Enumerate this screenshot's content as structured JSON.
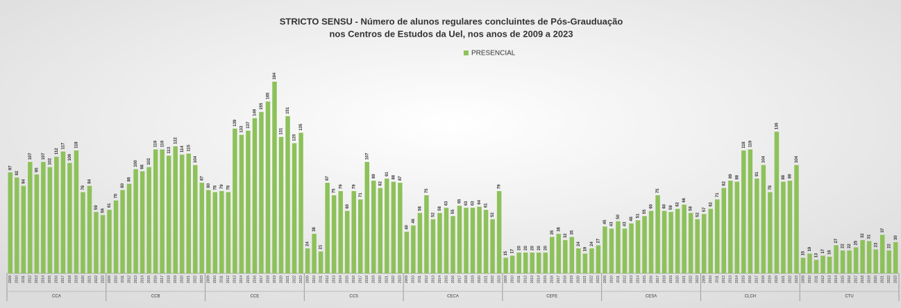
{
  "chart_data": {
    "type": "bar",
    "title": "STRICTO SENSU - Número de alunos regulares concluintes de Pós-Grauduação",
    "subtitle": "nos Centros de Estudos da Uel, nos anos de 2009 a 2023",
    "legend": "PRESENCIAL",
    "color": "#8dc15a",
    "ylim": [
      0,
      190
    ],
    "categories": [
      "2009",
      "2010",
      "2011",
      "2012",
      "2013",
      "2014",
      "2015",
      "2016",
      "2017",
      "2018",
      "2019",
      "2020",
      "2021",
      "2022",
      "2023"
    ],
    "groups": [
      {
        "name": "CCA",
        "values": [
          97,
          92,
          84,
          107,
          95,
          107,
          102,
          112,
          117,
          106,
          118,
          78,
          84,
          59,
          56
        ]
      },
      {
        "name": "CCB",
        "values": [
          61,
          70,
          80,
          86,
          100,
          98,
          102,
          119,
          119,
          113,
          122,
          114,
          115,
          104,
          87
        ]
      },
      {
        "name": "CCE",
        "values": [
          80,
          78,
          79,
          78,
          139,
          133,
          137,
          149,
          155,
          165,
          184,
          131,
          151,
          125,
          135
        ]
      },
      {
        "name": "CCS",
        "values": [
          24,
          38,
          21,
          87,
          75,
          79,
          60,
          79,
          71,
          107,
          89,
          82,
          91,
          88,
          87
        ]
      },
      {
        "name": "CECA",
        "values": [
          40,
          46,
          58,
          75,
          52,
          58,
          63,
          55,
          65,
          63,
          63,
          64,
          61,
          52,
          79
        ]
      },
      {
        "name": "CEFE",
        "values": [
          15,
          17,
          20,
          20,
          20,
          20,
          20,
          35,
          38,
          32,
          35,
          24,
          19,
          24,
          27
        ]
      },
      {
        "name": "CESA",
        "values": [
          45,
          43,
          50,
          43,
          48,
          51,
          55,
          60,
          75,
          60,
          59,
          62,
          66,
          58,
          52
        ]
      },
      {
        "name": "CLCH",
        "values": [
          57,
          62,
          71,
          82,
          89,
          88,
          118,
          119,
          91,
          104,
          78,
          136,
          88,
          89,
          104
        ]
      },
      {
        "name": "CTU",
        "values": [
          15,
          19,
          13,
          17,
          16,
          27,
          22,
          22,
          25,
          32,
          31,
          23,
          37,
          22,
          30
        ]
      }
    ]
  }
}
